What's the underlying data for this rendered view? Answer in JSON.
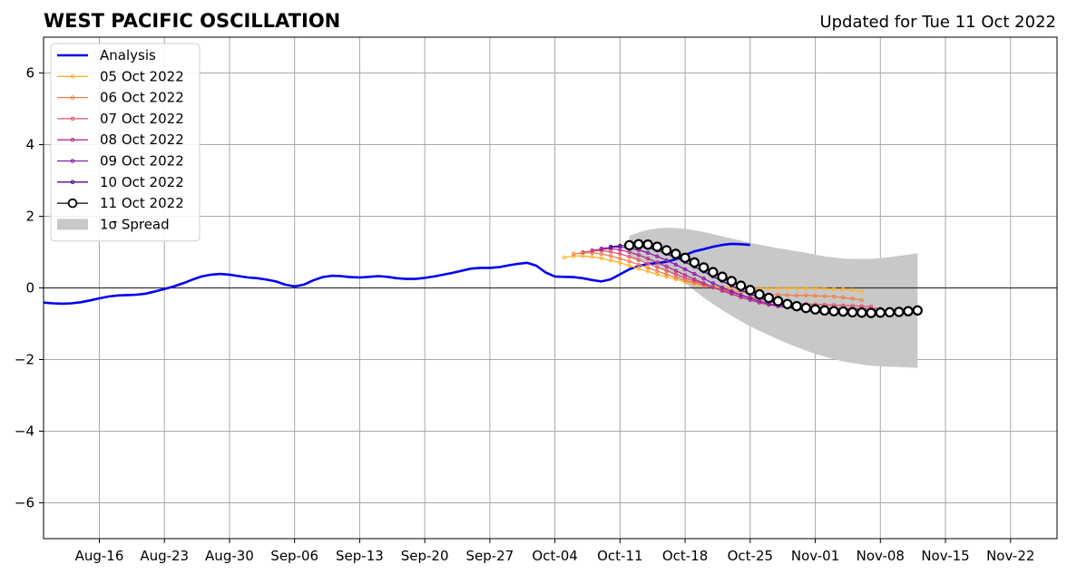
{
  "title": "WEST PACIFIC OSCILLATION",
  "subtitle": "Updated for Tue 11 Oct 2022",
  "chart_data": {
    "type": "line",
    "title": "WEST PACIFIC OSCILLATION",
    "subtitle": "Updated for Tue 11 Oct 2022",
    "xlabel": "",
    "ylabel": "",
    "x_axis": "date",
    "xlim": [
      "2022-08-10",
      "2022-11-27"
    ],
    "ylim": [
      -7,
      7
    ],
    "y_ticks": [
      -6,
      -4,
      -2,
      0,
      2,
      4,
      6
    ],
    "y_tick_labels": [
      "−6",
      "−4",
      "−2",
      "0",
      "2",
      "4",
      "6"
    ],
    "x_ticks": [
      "2022-08-16",
      "2022-08-23",
      "2022-08-30",
      "2022-09-06",
      "2022-09-13",
      "2022-09-20",
      "2022-09-27",
      "2022-10-04",
      "2022-10-11",
      "2022-10-18",
      "2022-10-25",
      "2022-11-01",
      "2022-11-08",
      "2022-11-15",
      "2022-11-22"
    ],
    "x_tick_labels": [
      "Aug-16",
      "Aug-23",
      "Aug-30",
      "Sep-06",
      "Sep-13",
      "Sep-20",
      "Sep-27",
      "Oct-04",
      "Oct-11",
      "Oct-18",
      "Oct-25",
      "Nov-01",
      "Nov-08",
      "Nov-15",
      "Nov-22"
    ],
    "grid": true,
    "zero_line": true,
    "legend_position": "top-left",
    "analysis": {
      "name": "Analysis",
      "color": "#0000ee",
      "start": "2022-08-10",
      "values": [
        -0.41,
        -0.43,
        -0.44,
        -0.43,
        -0.4,
        -0.35,
        -0.29,
        -0.24,
        -0.21,
        -0.2,
        -0.19,
        -0.16,
        -0.1,
        -0.03,
        0.04,
        0.13,
        0.23,
        0.32,
        0.37,
        0.39,
        0.37,
        0.33,
        0.29,
        0.27,
        0.23,
        0.18,
        0.09,
        0.04,
        0.09,
        0.21,
        0.3,
        0.34,
        0.33,
        0.3,
        0.29,
        0.31,
        0.33,
        0.31,
        0.27,
        0.25,
        0.25,
        0.28,
        0.32,
        0.37,
        0.42,
        0.48,
        0.54,
        0.56,
        0.56,
        0.58,
        0.63,
        0.67,
        0.7,
        0.62,
        0.43,
        0.32,
        0.31,
        0.3,
        0.27,
        0.22,
        0.18,
        0.24,
        0.38,
        0.52,
        0.61,
        0.67,
        0.69,
        0.73,
        0.8,
        0.92,
        1.02,
        1.08,
        1.15,
        1.2,
        1.23,
        1.22,
        1.2
      ]
    },
    "forecasts": [
      {
        "name": "05 Oct 2022",
        "color": "#fdb42f",
        "start": "2022-10-05",
        "values": [
          0.85,
          0.89,
          0.89,
          0.87,
          0.83,
          0.77,
          0.7,
          0.62,
          0.54,
          0.46,
          0.38,
          0.31,
          0.24,
          0.17,
          0.11,
          0.06,
          0.03,
          0.01,
          0.0,
          0.0,
          -0.01,
          -0.01,
          -0.01,
          -0.01,
          -0.01,
          -0.01,
          -0.01,
          -0.01,
          -0.02,
          -0.03,
          -0.04,
          -0.06,
          -0.1
        ]
      },
      {
        "name": "06 Oct 2022",
        "color": "#f0804f",
        "start": "2022-10-06",
        "values": [
          0.95,
          0.98,
          0.98,
          0.95,
          0.89,
          0.82,
          0.74,
          0.65,
          0.56,
          0.47,
          0.38,
          0.29,
          0.21,
          0.14,
          0.07,
          0.01,
          -0.04,
          -0.08,
          -0.11,
          -0.14,
          -0.16,
          -0.18,
          -0.19,
          -0.2,
          -0.21,
          -0.21,
          -0.22,
          -0.23,
          -0.24,
          -0.27,
          -0.3,
          -0.34
        ]
      },
      {
        "name": "07 Oct 2022",
        "color": "#e0566e",
        "start": "2022-10-07",
        "values": [
          1.0,
          1.03,
          1.04,
          1.01,
          0.95,
          0.87,
          0.78,
          0.68,
          0.58,
          0.48,
          0.38,
          0.28,
          0.19,
          0.1,
          0.02,
          -0.06,
          -0.13,
          -0.2,
          -0.26,
          -0.31,
          -0.35,
          -0.39,
          -0.42,
          -0.44,
          -0.45,
          -0.46,
          -0.47,
          -0.48,
          -0.49,
          -0.5,
          -0.51,
          -0.52
        ]
      },
      {
        "name": "08 Oct 2022",
        "color": "#b6308b",
        "start": "2022-10-08",
        "values": [
          1.05,
          1.08,
          1.09,
          1.06,
          1.0,
          0.92,
          0.82,
          0.71,
          0.6,
          0.48,
          0.36,
          0.24,
          0.13,
          0.02,
          -0.08,
          -0.17,
          -0.26,
          -0.34,
          -0.41,
          -0.47,
          -0.51,
          -0.54,
          -0.56,
          -0.57,
          -0.57,
          -0.58,
          -0.58,
          -0.58,
          -0.58,
          -0.58,
          -0.58,
          -0.58
        ]
      },
      {
        "name": "09 Oct 2022",
        "color": "#8a1ba8",
        "start": "2022-10-09",
        "values": [
          1.1,
          1.13,
          1.14,
          1.11,
          1.06,
          0.98,
          0.88,
          0.77,
          0.65,
          0.52,
          0.39,
          0.26,
          0.13,
          0.01,
          -0.1,
          -0.2,
          -0.29,
          -0.37,
          -0.44,
          -0.5,
          -0.55,
          -0.59,
          -0.62,
          -0.64,
          -0.65,
          -0.65,
          -0.65,
          -0.64,
          -0.64,
          -0.64,
          -0.63,
          -0.63
        ]
      },
      {
        "name": "10 Oct 2022",
        "color": "#4b0c8e",
        "start": "2022-10-10",
        "values": [
          1.15,
          1.18,
          1.19,
          1.17,
          1.12,
          1.05,
          0.95,
          0.84,
          0.72,
          0.59,
          0.46,
          0.32,
          0.19,
          0.06,
          -0.06,
          -0.17,
          -0.27,
          -0.36,
          -0.44,
          -0.51,
          -0.57,
          -0.62,
          -0.66,
          -0.69,
          -0.7,
          -0.71,
          -0.71,
          -0.71,
          -0.7,
          -0.69,
          -0.68,
          -0.67
        ]
      },
      {
        "name": "11 Oct 2022",
        "color": "#000000",
        "start": "2022-10-12",
        "values": [
          1.19,
          1.22,
          1.21,
          1.15,
          1.05,
          0.95,
          0.84,
          0.71,
          0.57,
          0.44,
          0.31,
          0.19,
          0.06,
          -0.06,
          -0.18,
          -0.28,
          -0.37,
          -0.45,
          -0.51,
          -0.56,
          -0.6,
          -0.63,
          -0.65,
          -0.66,
          -0.68,
          -0.69,
          -0.7,
          -0.69,
          -0.68,
          -0.67,
          -0.65,
          -0.63
        ]
      }
    ],
    "spread": {
      "name": "1σ Spread",
      "color": "#c8c8c8",
      "start": "2022-10-12",
      "upper": [
        1.45,
        1.55,
        1.62,
        1.66,
        1.68,
        1.67,
        1.65,
        1.61,
        1.56,
        1.5,
        1.44,
        1.38,
        1.32,
        1.26,
        1.21,
        1.16,
        1.11,
        1.07,
        1.02,
        0.98,
        0.93,
        0.88,
        0.85,
        0.82,
        0.81,
        0.81,
        0.81,
        0.83,
        0.86,
        0.89,
        0.93,
        0.97
      ],
      "lower": [
        0.85,
        0.8,
        0.72,
        0.62,
        0.48,
        0.32,
        0.13,
        -0.07,
        -0.27,
        -0.45,
        -0.62,
        -0.78,
        -0.93,
        -1.07,
        -1.2,
        -1.32,
        -1.44,
        -1.55,
        -1.65,
        -1.75,
        -1.84,
        -1.92,
        -1.99,
        -2.05,
        -2.1,
        -2.14,
        -2.17,
        -2.19,
        -2.2,
        -2.21,
        -2.22,
        -2.23
      ]
    }
  }
}
